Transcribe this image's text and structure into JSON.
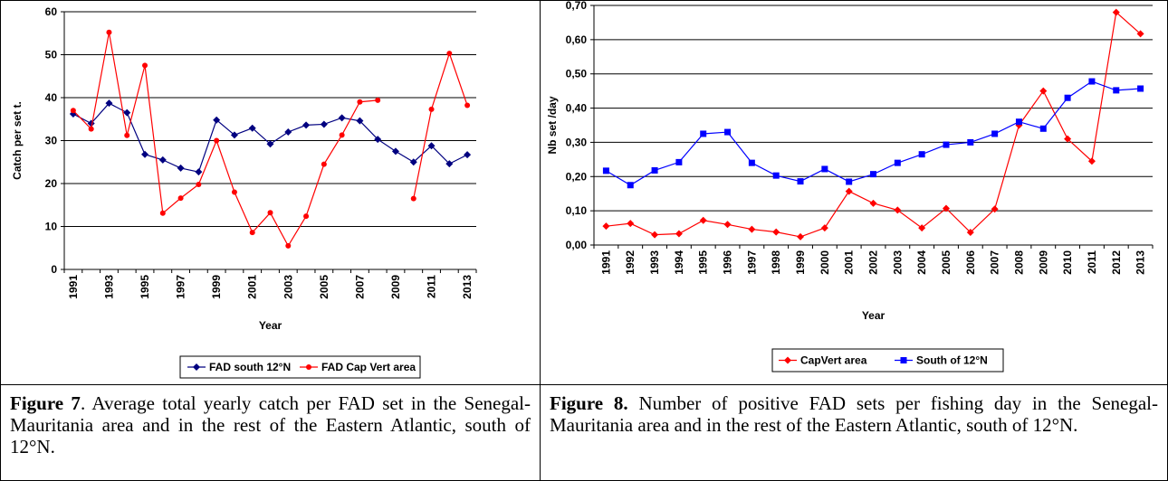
{
  "chart_data": [
    {
      "type": "line",
      "x_label": "Year",
      "y_label": "Catch per set t.",
      "categories": [
        "1991",
        null,
        "1993",
        null,
        "1995",
        null,
        "1997",
        null,
        "1999",
        null,
        "2001",
        null,
        "2003",
        null,
        "2005",
        null,
        "2007",
        null,
        "2009",
        null,
        "2011",
        null,
        "2013"
      ],
      "ylim": [
        0,
        60
      ],
      "yticks": [
        0,
        10,
        20,
        30,
        40,
        50,
        60
      ],
      "grid": true,
      "legend": "bottom",
      "series": [
        {
          "name": "FAD south 12°N",
          "color": "#000080",
          "marker": "diamond",
          "values": [
            36.2,
            34,
            38.7,
            36.5,
            26.8,
            25.5,
            23.6,
            22.7,
            34.8,
            31.3,
            32.9,
            29.2,
            32,
            33.6,
            33.8,
            35.3,
            34.6,
            30.3,
            27.5,
            25,
            28.8,
            24.6,
            26.7
          ]
        },
        {
          "name": "FAD Cap Vert area",
          "color": "#ff0000",
          "marker": "circle",
          "values": [
            37,
            32.7,
            55.2,
            31.2,
            47.5,
            13.1,
            16.6,
            19.8,
            30,
            18,
            8.6,
            13.2,
            5.5,
            12.4,
            24.5,
            31.3,
            39,
            39.4,
            null,
            16.5,
            37.3,
            50.3,
            38.2
          ]
        }
      ]
    },
    {
      "type": "line",
      "x_label": "Year",
      "y_label": "Nb set /day",
      "categories": [
        "1991",
        "1992",
        "1993",
        "1994",
        "1995",
        "1996",
        "1997",
        "1998",
        "1999",
        "2000",
        "2001",
        "2002",
        "2003",
        "2004",
        "2005",
        "2006",
        "2007",
        "2008",
        "2009",
        "2010",
        "2011",
        "2012",
        "2013"
      ],
      "ylim": [
        0,
        0.7
      ],
      "yticks": [
        {
          "value": 0,
          "label": "0,00"
        },
        {
          "value": 0.1,
          "label": "0,10"
        },
        {
          "value": 0.2,
          "label": "0,20"
        },
        {
          "value": 0.3,
          "label": "0,30"
        },
        {
          "value": 0.4,
          "label": "0,40"
        },
        {
          "value": 0.5,
          "label": "0,50"
        },
        {
          "value": 0.6,
          "label": "0,60"
        },
        {
          "value": 0.7,
          "label": "0,70"
        }
      ],
      "grid": true,
      "legend": "bottom",
      "series": [
        {
          "name": "CapVert area",
          "color": "#ff0000",
          "marker": "diamond",
          "values": [
            0.055,
            0.063,
            0.03,
            0.033,
            0.072,
            0.06,
            0.046,
            0.038,
            0.024,
            0.05,
            0.157,
            0.122,
            0.102,
            0.05,
            0.107,
            0.037,
            0.105,
            0.35,
            0.45,
            0.31,
            0.245,
            0.68,
            0.617
          ]
        },
        {
          "name": "South of 12°N",
          "color": "#0000ff",
          "marker": "square",
          "values": [
            0.217,
            0.175,
            0.218,
            0.242,
            0.325,
            0.33,
            0.24,
            0.203,
            0.186,
            0.222,
            0.185,
            0.207,
            0.24,
            0.265,
            0.293,
            0.3,
            0.325,
            0.36,
            0.34,
            0.43,
            0.478,
            0.452,
            0.457
          ]
        }
      ]
    }
  ],
  "captions": [
    {
      "label": "Figure 7",
      "text": ". Average total yearly catch per FAD set in the Senegal-Mauritania area and in the rest of the Eastern Atlantic, south of 12°N."
    },
    {
      "label": "Figure 8.",
      "text": " Number of positive FAD sets per fishing day in the Senegal-Mauritania area and in the rest of the Eastern Atlantic, south of 12°N."
    }
  ]
}
